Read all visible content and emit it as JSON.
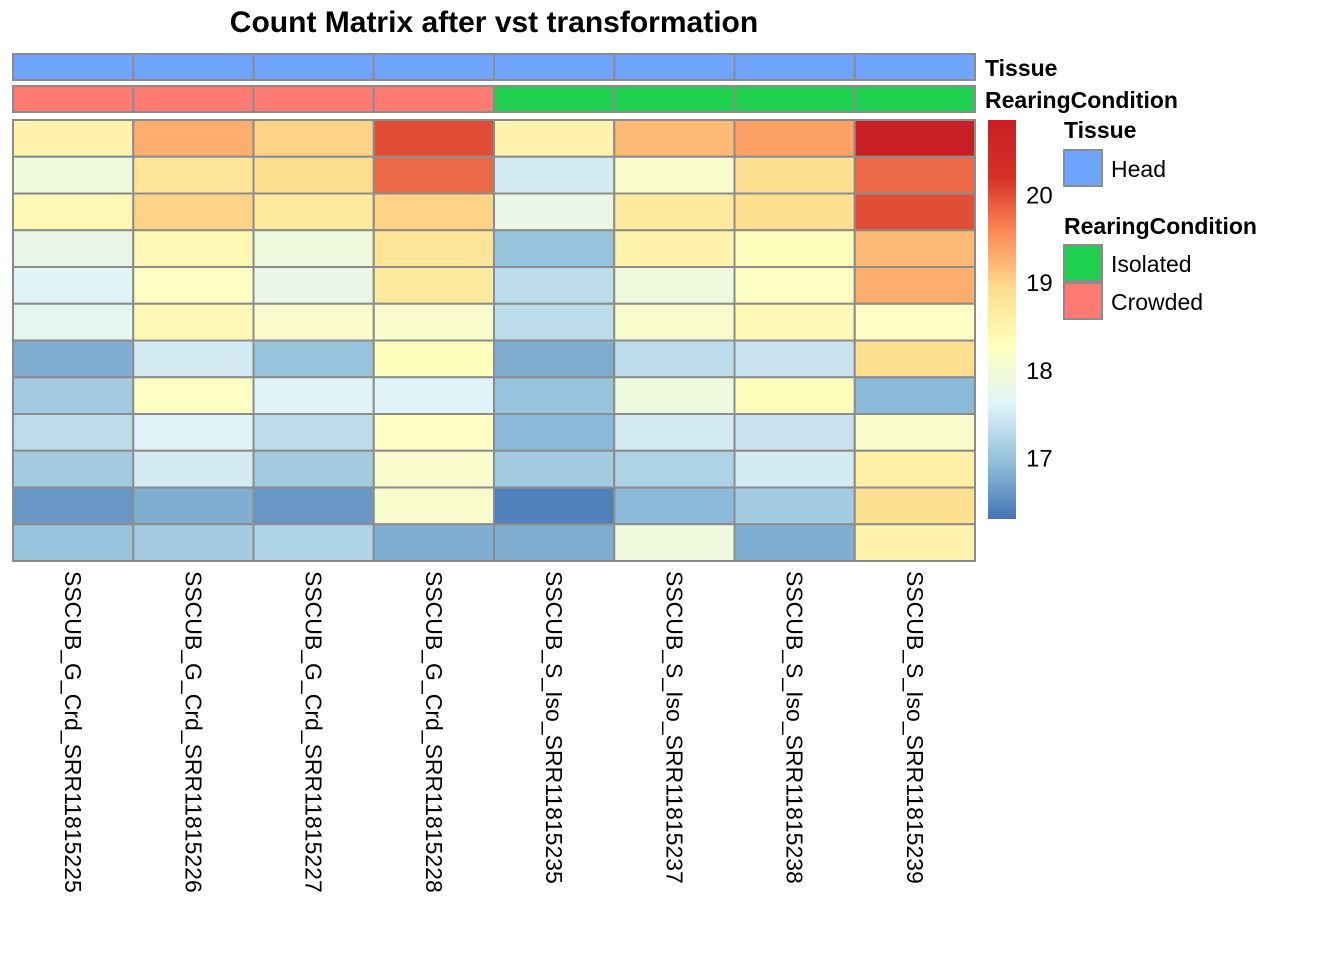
{
  "chart_data": {
    "type": "heatmap",
    "title": "Count Matrix after vst transformation",
    "columns": [
      "SSCUB_G_Crd_SRR11815225",
      "SSCUB_G_Crd_SRR11815226",
      "SSCUB_G_Crd_SRR11815227",
      "SSCUB_G_Crd_SRR11815228",
      "SSCUB_S_Iso_SRR11815235",
      "SSCUB_S_Iso_SRR11815237",
      "SSCUB_S_Iso_SRR11815238",
      "SSCUB_S_Iso_SRR11815239"
    ],
    "column_annotations": [
      {
        "name": "Tissue",
        "values": [
          "Head",
          "Head",
          "Head",
          "Head",
          "Head",
          "Head",
          "Head",
          "Head"
        ]
      },
      {
        "name": "RearingCondition",
        "values": [
          "Crowded",
          "Crowded",
          "Crowded",
          "Crowded",
          "Isolated",
          "Isolated",
          "Isolated",
          "Isolated"
        ]
      }
    ],
    "values": [
      [
        18.5,
        19.3,
        19.0,
        20.0,
        18.5,
        19.2,
        19.4,
        20.8
      ],
      [
        17.9,
        18.8,
        18.9,
        19.8,
        17.5,
        18.1,
        18.9,
        19.8
      ],
      [
        18.4,
        19.0,
        18.7,
        19.0,
        17.8,
        18.7,
        18.9,
        20.0
      ],
      [
        17.8,
        18.4,
        17.9,
        18.8,
        17.0,
        18.5,
        18.3,
        19.2
      ],
      [
        17.6,
        18.2,
        17.8,
        18.7,
        17.3,
        17.9,
        18.2,
        19.3
      ],
      [
        17.7,
        18.4,
        18.1,
        18.1,
        17.3,
        18.1,
        18.4,
        18.2
      ],
      [
        16.8,
        17.5,
        17.0,
        18.3,
        16.8,
        17.3,
        17.4,
        18.9
      ],
      [
        17.1,
        18.2,
        17.6,
        17.6,
        17.0,
        17.9,
        18.3,
        16.9
      ],
      [
        17.3,
        17.6,
        17.3,
        18.2,
        16.9,
        17.5,
        17.4,
        18.1
      ],
      [
        17.1,
        17.5,
        17.1,
        18.1,
        17.1,
        17.2,
        17.5,
        18.6
      ],
      [
        16.6,
        16.8,
        16.6,
        18.1,
        16.4,
        16.9,
        17.1,
        18.9
      ],
      [
        17.0,
        17.1,
        17.2,
        16.8,
        16.8,
        17.9,
        16.8,
        18.5
      ]
    ],
    "colorbar": {
      "ticks": [
        17,
        18,
        19,
        20
      ],
      "range": [
        16.3,
        20.85
      ],
      "palette": [
        "#4575B4",
        "#91BFDB",
        "#E0F3F8",
        "#FFFFBF",
        "#FEE090",
        "#FC8D59",
        "#D73027",
        "#C81E24"
      ]
    },
    "legends": [
      {
        "title": "Tissue",
        "items": [
          {
            "label": "Head",
            "color": "#6FA5FF"
          }
        ]
      },
      {
        "title": "RearingCondition",
        "items": [
          {
            "label": "Isolated",
            "color": "#1FCF4E"
          },
          {
            "label": "Crowded",
            "color": "#FF7A73"
          }
        ]
      }
    ],
    "annotation_colors": {
      "Head": "#6FA5FF",
      "Isolated": "#1FCF4E",
      "Crowded": "#FF7A73"
    },
    "cell_border_color": "#8C8C8C"
  }
}
